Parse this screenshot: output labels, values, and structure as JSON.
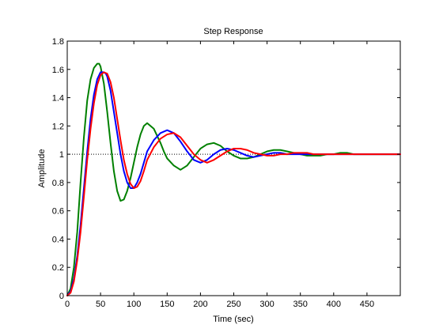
{
  "window": {
    "background": "#ffffff"
  },
  "chart_data": {
    "type": "line",
    "title": "Step Response",
    "xlabel": "Time (sec)",
    "ylabel": "Amplitude",
    "xlim": [
      0,
      500
    ],
    "ylim": [
      0,
      1.8
    ],
    "xticks": [
      0,
      50,
      100,
      150,
      200,
      250,
      300,
      350,
      400,
      450
    ],
    "yticks": [
      0,
      0.2,
      0.4,
      0.6,
      0.8,
      1,
      1.2,
      1.4,
      1.6,
      1.8
    ],
    "grid": false,
    "legend": "none",
    "reference_line": {
      "y": 1,
      "style": "dotted",
      "color": "#000000"
    },
    "series": [
      {
        "color": "#008000",
        "x": [
          0,
          5,
          10,
          15,
          20,
          25,
          30,
          35,
          40,
          45,
          48,
          50,
          55,
          60,
          65,
          70,
          75,
          80,
          85,
          90,
          95,
          100,
          105,
          110,
          115,
          120,
          130,
          140,
          145,
          150,
          160,
          170,
          180,
          190,
          200,
          210,
          220,
          230,
          240,
          250,
          260,
          270,
          280,
          290,
          300,
          310,
          320,
          330,
          340,
          350,
          360,
          370,
          380,
          390,
          400,
          410,
          420,
          430,
          440,
          450,
          460,
          470,
          480,
          490,
          500
        ],
        "y": [
          0,
          0.05,
          0.2,
          0.45,
          0.8,
          1.12,
          1.38,
          1.53,
          1.61,
          1.64,
          1.64,
          1.62,
          1.5,
          1.3,
          1.08,
          0.88,
          0.74,
          0.67,
          0.68,
          0.74,
          0.83,
          0.94,
          1.05,
          1.14,
          1.2,
          1.22,
          1.18,
          1.08,
          1.02,
          0.97,
          0.92,
          0.89,
          0.92,
          0.98,
          1.04,
          1.07,
          1.08,
          1.06,
          1.02,
          0.99,
          0.97,
          0.97,
          0.98,
          1.0,
          1.02,
          1.03,
          1.03,
          1.02,
          1.01,
          1.0,
          0.99,
          0.99,
          0.99,
          1.0,
          1.0,
          1.01,
          1.01,
          1.0,
          1.0,
          1.0,
          1.0,
          1.0,
          1.0,
          1.0,
          1.0
        ]
      },
      {
        "color": "#0000ff",
        "x": [
          0,
          5,
          10,
          15,
          20,
          25,
          30,
          35,
          40,
          45,
          50,
          55,
          58,
          60,
          65,
          70,
          75,
          80,
          85,
          90,
          95,
          100,
          105,
          110,
          115,
          120,
          130,
          140,
          150,
          160,
          170,
          180,
          190,
          200,
          210,
          220,
          230,
          240,
          250,
          260,
          270,
          280,
          290,
          300,
          310,
          320,
          330,
          340,
          350,
          360,
          370,
          380,
          390,
          400,
          410,
          420,
          430,
          440,
          450,
          460,
          470,
          480,
          490,
          500
        ],
        "y": [
          0,
          0.03,
          0.12,
          0.28,
          0.5,
          0.76,
          1.02,
          1.25,
          1.42,
          1.53,
          1.58,
          1.58,
          1.57,
          1.55,
          1.45,
          1.3,
          1.15,
          1.0,
          0.88,
          0.8,
          0.76,
          0.76,
          0.8,
          0.86,
          0.94,
          1.02,
          1.1,
          1.15,
          1.17,
          1.15,
          1.09,
          1.02,
          0.96,
          0.94,
          0.96,
          1.0,
          1.03,
          1.04,
          1.03,
          1.01,
          0.99,
          0.98,
          0.99,
          1.0,
          1.01,
          1.01,
          1.0,
          1.0,
          1.0,
          1.0,
          1.0,
          1.0,
          1.0,
          1.0,
          1.0,
          1.0,
          1.0,
          1.0,
          1.0,
          1.0,
          1.0,
          1.0,
          1.0,
          1.0
        ]
      },
      {
        "color": "#ff0000",
        "x": [
          0,
          5,
          10,
          15,
          20,
          25,
          30,
          35,
          40,
          45,
          50,
          55,
          60,
          65,
          70,
          75,
          80,
          85,
          90,
          95,
          100,
          105,
          110,
          115,
          120,
          130,
          140,
          150,
          160,
          170,
          180,
          190,
          200,
          210,
          220,
          230,
          240,
          250,
          260,
          270,
          280,
          290,
          300,
          310,
          320,
          330,
          340,
          350,
          360,
          370,
          380,
          390,
          400,
          410,
          420,
          430,
          440,
          450,
          460,
          470,
          480,
          490,
          500
        ],
        "y": [
          0,
          0.02,
          0.1,
          0.25,
          0.45,
          0.7,
          0.96,
          1.18,
          1.36,
          1.49,
          1.56,
          1.58,
          1.57,
          1.51,
          1.4,
          1.25,
          1.1,
          0.96,
          0.86,
          0.79,
          0.76,
          0.77,
          0.81,
          0.88,
          0.96,
          1.05,
          1.11,
          1.14,
          1.15,
          1.12,
          1.06,
          1.0,
          0.96,
          0.94,
          0.96,
          0.99,
          1.02,
          1.04,
          1.04,
          1.03,
          1.01,
          1.0,
          0.99,
          0.99,
          1.0,
          1.0,
          1.01,
          1.01,
          1.01,
          1.0,
          1.0,
          1.0,
          1.0,
          1.0,
          1.0,
          1.0,
          1.0,
          1.0,
          1.0,
          1.0,
          1.0,
          1.0,
          1.0
        ]
      }
    ]
  }
}
